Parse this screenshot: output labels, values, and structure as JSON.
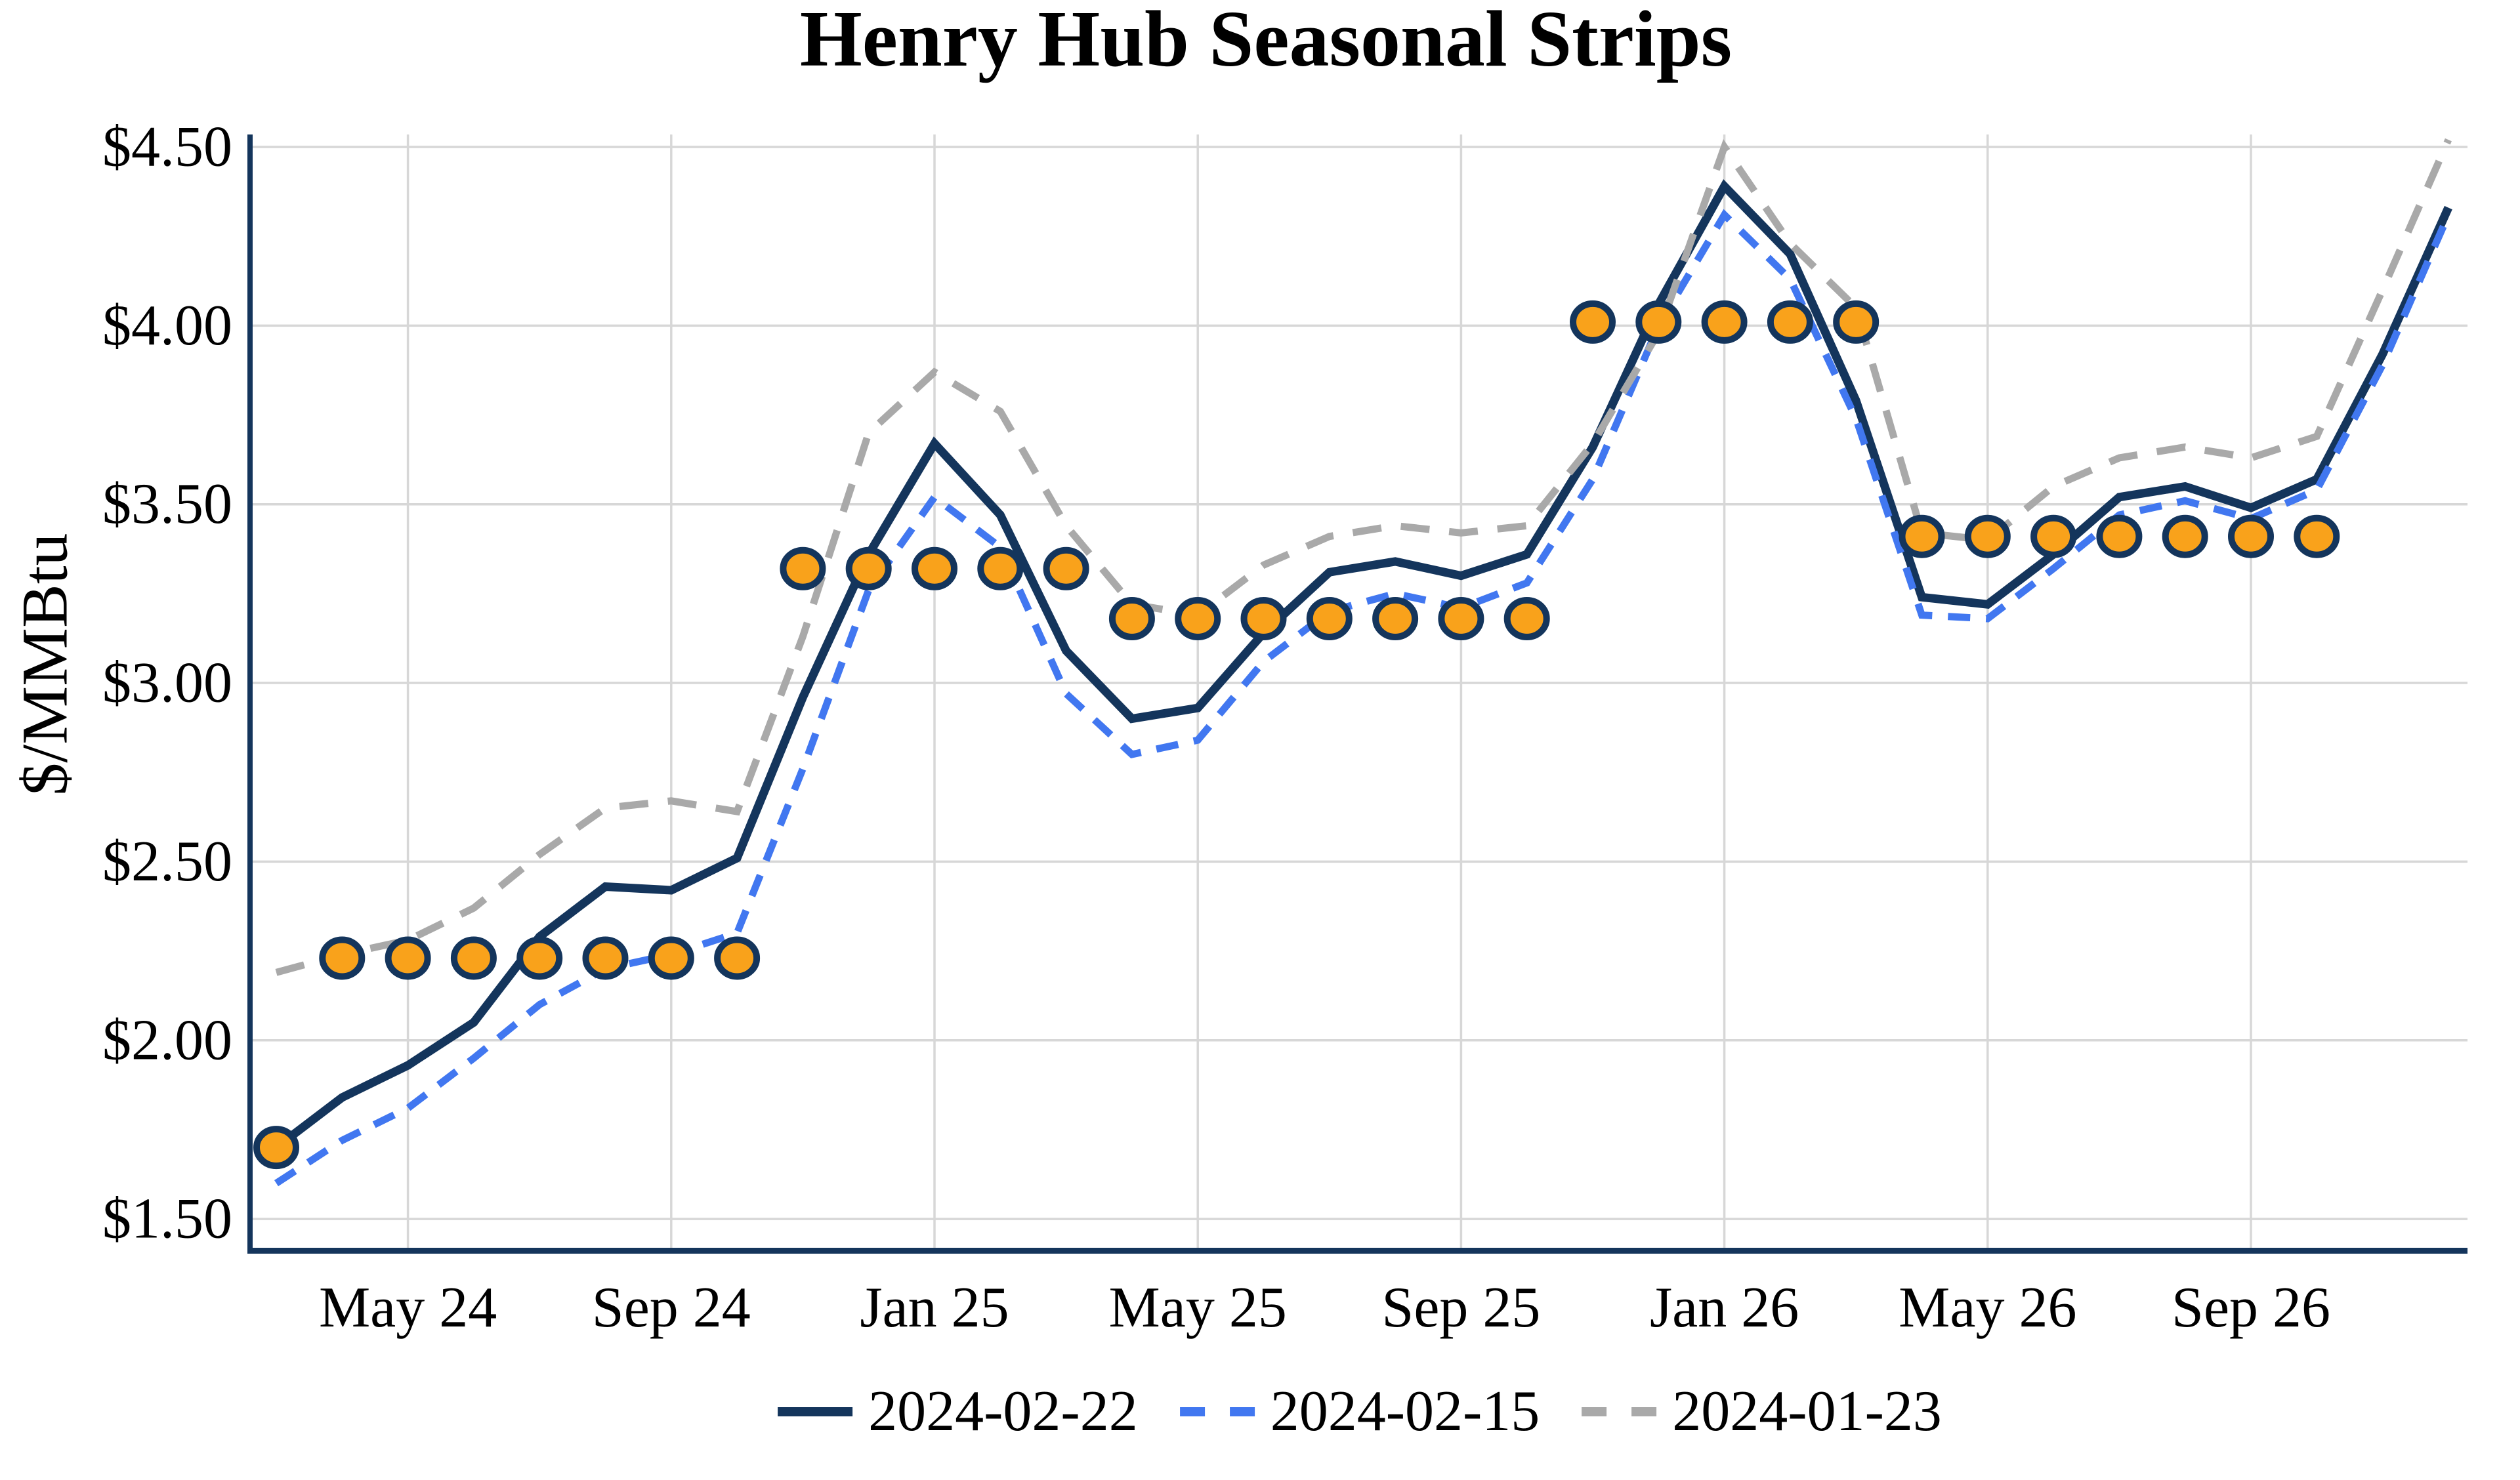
{
  "page": {
    "background": "#FFFFFF"
  },
  "chart_data": {
    "type": "line",
    "title": "Henry Hub Seasonal Strips",
    "ylabel": "$/MMBtu",
    "xlabel": "",
    "grid": true,
    "legend_position": "bottom-center",
    "ylim": [
      1.42,
      4.54
    ],
    "y_ticks": [
      {
        "value": 1.5,
        "label": "$1.50"
      },
      {
        "value": 2.0,
        "label": "$2.00"
      },
      {
        "value": 2.5,
        "label": "$2.50"
      },
      {
        "value": 3.0,
        "label": "$3.00"
      },
      {
        "value": 3.5,
        "label": "$3.50"
      },
      {
        "value": 4.0,
        "label": "$4.00"
      },
      {
        "value": 4.5,
        "label": "$4.50"
      }
    ],
    "x_ticks": [
      {
        "index": 2,
        "label": "May 24"
      },
      {
        "index": 6,
        "label": "Sep 24"
      },
      {
        "index": 10,
        "label": "Jan 25"
      },
      {
        "index": 14,
        "label": "May 25"
      },
      {
        "index": 18,
        "label": "Sep 25"
      },
      {
        "index": 22,
        "label": "Jan 26"
      },
      {
        "index": 26,
        "label": "May 26"
      },
      {
        "index": 30,
        "label": "Sep 26"
      }
    ],
    "x_index_count": 34,
    "colors": {
      "grid": "#D7D7D7",
      "axis": "#14355C",
      "marker_fill": "#F9A21B",
      "marker_edge": "#14355C"
    },
    "series": [
      {
        "name": "2024-02-22",
        "color": "#14355C",
        "line_style": "solid",
        "values": [
          1.7,
          1.84,
          1.93,
          2.05,
          2.29,
          2.43,
          2.42,
          2.51,
          2.96,
          3.36,
          3.67,
          3.47,
          3.09,
          2.9,
          2.93,
          3.14,
          3.31,
          3.34,
          3.3,
          3.36,
          3.66,
          4.06,
          4.39,
          4.2,
          3.79,
          3.24,
          3.22,
          3.36,
          3.52,
          3.55,
          3.49,
          3.57,
          3.92,
          4.33
        ]
      },
      {
        "name": "2024-02-15",
        "color": "#4177F0",
        "line_style": "dashed",
        "values": [
          1.6,
          1.72,
          1.81,
          1.95,
          2.1,
          2.2,
          2.24,
          2.3,
          2.76,
          3.26,
          3.52,
          3.38,
          2.97,
          2.8,
          2.84,
          3.06,
          3.2,
          3.25,
          3.21,
          3.28,
          3.57,
          4.0,
          4.31,
          4.13,
          3.74,
          3.19,
          3.18,
          3.32,
          3.47,
          3.51,
          3.46,
          3.54,
          3.89,
          4.31
        ]
      },
      {
        "name": "2024-01-23",
        "color": "#A9A9A9",
        "line_style": "dashed",
        "values": [
          2.19,
          2.24,
          2.28,
          2.37,
          2.52,
          2.65,
          2.67,
          2.64,
          3.13,
          3.7,
          3.87,
          3.76,
          3.44,
          3.22,
          3.19,
          3.33,
          3.41,
          3.44,
          3.42,
          3.44,
          3.67,
          3.98,
          4.5,
          4.23,
          4.05,
          3.42,
          3.4,
          3.55,
          3.63,
          3.66,
          3.63,
          3.69,
          4.1,
          4.52
        ]
      }
    ],
    "strip_markers": {
      "description": "Orange circles marking seasonal strip average prices",
      "groups": [
        {
          "start_index": 0,
          "count": 1,
          "value": 1.7
        },
        {
          "start_index": 1,
          "count": 7,
          "value": 2.23
        },
        {
          "start_index": 8,
          "count": 5,
          "value": 3.32
        },
        {
          "start_index": 13,
          "count": 7,
          "value": 3.18
        },
        {
          "start_index": 20,
          "count": 5,
          "value": 4.01
        },
        {
          "start_index": 25,
          "count": 7,
          "value": 3.41
        }
      ]
    }
  }
}
